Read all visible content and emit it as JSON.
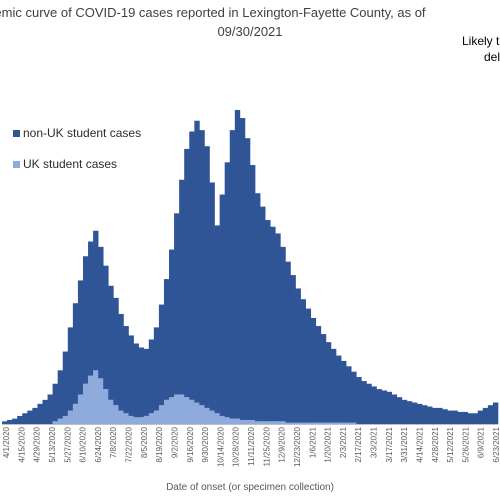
{
  "title": {
    "line1": "emic curve of COVID-19 cases reported in Lexington-Fayette County, as of",
    "line2": "09/30/2021"
  },
  "annotation": {
    "line1": "Likely t",
    "line2": "del"
  },
  "chart_data": {
    "type": "bar",
    "stacked": true,
    "xlabel": "Date of onset (or specimen collection)",
    "ylabel": "",
    "colors": {
      "non_uk": "#2F5597",
      "uk": "#8FAADC"
    },
    "legend_position": "left",
    "tick_labels": [
      "4/1/2020",
      "4/15/2020",
      "4/29/2020",
      "5/13/2020",
      "5/27/2020",
      "6/10/2020",
      "6/24/2020",
      "7/8/2020",
      "7/22/2020",
      "8/5/2020",
      "8/19/2020",
      "9/2/2020",
      "9/16/2020",
      "9/30/2020",
      "10/14/2020",
      "10/28/2020",
      "11/11/2020",
      "11/25/2020",
      "12/9/2020",
      "12/23/2020",
      "1/6/2021",
      "1/20/2021",
      "2/3/2021",
      "2/17/2021",
      "3/3/2021",
      "3/17/2021",
      "3/31/2021",
      "4/14/2021",
      "4/28/2021",
      "5/12/2021",
      "5/26/2021",
      "6/9/2021",
      "6/23/2021"
    ],
    "series": [
      {
        "name": "non-UK student cases",
        "values": [
          2,
          3,
          4,
          6,
          8,
          10,
          12,
          15,
          18,
          22,
          28,
          36,
          48,
          62,
          75,
          85,
          95,
          100,
          104,
          98,
          92,
          85,
          80,
          72,
          65,
          60,
          55,
          52,
          50,
          55,
          62,
          75,
          90,
          110,
          135,
          160,
          185,
          200,
          210,
          205,
          195,
          170,
          140,
          165,
          190,
          215,
          230,
          225,
          210,
          190,
          170,
          160,
          150,
          145,
          140,
          130,
          120,
          110,
          100,
          92,
          85,
          78,
          72,
          66,
          60,
          55,
          50,
          46,
          42,
          38,
          35,
          32,
          30,
          28,
          26,
          25,
          24,
          22,
          20,
          18,
          17,
          16,
          15,
          14,
          13,
          12,
          12,
          11,
          10,
          10,
          9,
          9,
          8,
          8,
          10,
          12,
          14,
          16
        ]
      },
      {
        "name": "UK student cases",
        "values": [
          0,
          0,
          0,
          0,
          0,
          0,
          0,
          0,
          0,
          0,
          2,
          4,
          6,
          10,
          15,
          22,
          30,
          36,
          40,
          34,
          26,
          18,
          14,
          10,
          8,
          6,
          5,
          5,
          6,
          8,
          10,
          14,
          18,
          20,
          22,
          22,
          20,
          18,
          16,
          14,
          12,
          10,
          8,
          6,
          5,
          4,
          4,
          3,
          3,
          3,
          2,
          2,
          2,
          2,
          2,
          2,
          1,
          1,
          1,
          1,
          1,
          1,
          1,
          1,
          1,
          1,
          1,
          1,
          1,
          1,
          0,
          0,
          0,
          0,
          0,
          0,
          0,
          0,
          0,
          0,
          0,
          0,
          0,
          0,
          0,
          0,
          0,
          0,
          0,
          0,
          0,
          0,
          0,
          0,
          0,
          0,
          0,
          0
        ]
      }
    ]
  }
}
